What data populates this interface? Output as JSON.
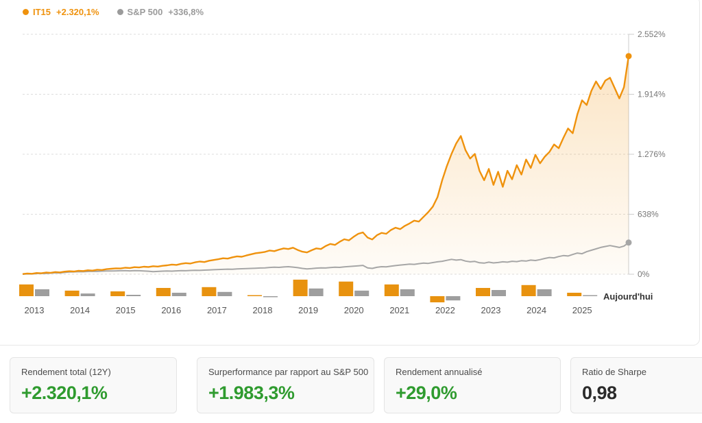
{
  "legend": {
    "series": [
      {
        "name": "IT15",
        "value": "+2.320,1%",
        "color": "#EF920D"
      },
      {
        "name": "S&P 500",
        "value": "+336,8%",
        "color": "#9B9B9B"
      }
    ]
  },
  "chart_data": {
    "type": "line",
    "title": "",
    "xlabel": "",
    "ylabel": "",
    "ylim": [
      0,
      2552
    ],
    "grid": "dashed-horizontal",
    "legend_position": "top-left",
    "y_ticks": [
      {
        "value": 2552,
        "label": "2.552%"
      },
      {
        "value": 1914,
        "label": "1.914%"
      },
      {
        "value": 1276,
        "label": "1.276%"
      },
      {
        "value": 638,
        "label": "638%"
      },
      {
        "value": 0,
        "label": "0%"
      }
    ],
    "x_range_years": [
      "2013",
      "2025"
    ],
    "today_label": "Aujourd'hui",
    "series": [
      {
        "name": "IT15",
        "color": "#EF920D",
        "fill": "gradient-orange",
        "values": [
          2,
          8,
          5,
          13,
          10,
          18,
          15,
          23,
          20,
          28,
          32,
          29,
          37,
          34,
          42,
          39,
          48,
          45,
          54,
          58,
          63,
          61,
          69,
          66,
          75,
          72,
          80,
          77,
          85,
          82,
          90,
          95,
          103,
          99,
          111,
          118,
          114,
          127,
          135,
          130,
          144,
          152,
          160,
          170,
          166,
          180,
          190,
          186,
          200,
          212,
          224,
          230,
          238,
          252,
          246,
          262,
          275,
          268,
          282,
          258,
          240,
          232,
          255,
          275,
          268,
          300,
          322,
          312,
          345,
          372,
          360,
          398,
          430,
          445,
          390,
          370,
          415,
          440,
          430,
          470,
          495,
          480,
          515,
          540,
          570,
          560,
          610,
          660,
          720,
          820,
          1000,
          1150,
          1280,
          1390,
          1470,
          1320,
          1230,
          1280,
          1100,
          1000,
          1120,
          950,
          1090,
          930,
          1100,
          1010,
          1160,
          1060,
          1220,
          1130,
          1270,
          1180,
          1250,
          1300,
          1380,
          1340,
          1450,
          1550,
          1500,
          1700,
          1850,
          1800,
          1950,
          2050,
          1970,
          2060,
          2090,
          1980,
          1870,
          1990,
          2320
        ]
      },
      {
        "name": "S&P 500",
        "color": "#A6A6A6",
        "fill": "none",
        "values": [
          0,
          4,
          3,
          7,
          9,
          8,
          12,
          15,
          14,
          19,
          24,
          25,
          27,
          26,
          29,
          31,
          30,
          33,
          35,
          34,
          36,
          37,
          38,
          36,
          39,
          37,
          35,
          32,
          28,
          30,
          33,
          35,
          33,
          36,
          38,
          37,
          40,
          42,
          41,
          44,
          46,
          48,
          50,
          52,
          54,
          53,
          56,
          58,
          60,
          62,
          64,
          66,
          68,
          72,
          75,
          73,
          77,
          80,
          76,
          70,
          62,
          56,
          60,
          65,
          68,
          66,
          71,
          75,
          73,
          78,
          82,
          86,
          90,
          94,
          68,
          62,
          74,
          80,
          78,
          85,
          92,
          98,
          102,
          107,
          105,
          112,
          118,
          115,
          124,
          132,
          138,
          148,
          158,
          150,
          155,
          140,
          132,
          136,
          122,
          118,
          128,
          120,
          125,
          132,
          128,
          138,
          134,
          144,
          140,
          150,
          146,
          155,
          168,
          178,
          174,
          188,
          198,
          194,
          210,
          225,
          218,
          240,
          255,
          270,
          285,
          295,
          305,
          295,
          285,
          300,
          337
        ]
      }
    ],
    "yearly_bars": {
      "categories": [
        "2013",
        "2014",
        "2015",
        "2016",
        "2017",
        "2018",
        "2019",
        "2020",
        "2021",
        "2022",
        "2023",
        "2024",
        "2025"
      ],
      "series": [
        {
          "name": "IT15",
          "color": "#E8920F",
          "values": [
            61,
            29,
            25,
            43,
            47,
            4,
            86,
            76,
            61,
            -32,
            43,
            58,
            18
          ]
        },
        {
          "name": "S&P 500",
          "color": "#9E9E9E",
          "values": [
            36,
            14,
            7,
            18,
            22,
            -4,
            40,
            29,
            36,
            -22,
            32,
            36,
            5
          ]
        }
      ]
    }
  },
  "stats": {
    "cards": [
      {
        "label": "Rendement total (12Y)",
        "value": "+2.320,1%",
        "color": "#2F9B2F"
      },
      {
        "label": "Surperformance par rapport au S&P 500",
        "value": "+1.983,3%",
        "color": "#2F9B2F"
      },
      {
        "label": "Rendement annualisé",
        "value": "+29,0%",
        "color": "#2F9B2F"
      },
      {
        "label": "Ratio de Sharpe",
        "value": "0,98",
        "color": "#2B2B2B"
      }
    ]
  }
}
